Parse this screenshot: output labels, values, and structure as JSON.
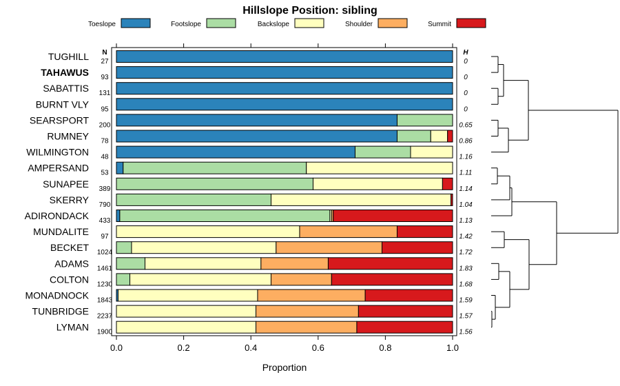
{
  "chart_data": {
    "type": "bar",
    "orientation": "horizontal",
    "stacked": true,
    "title": "Hillslope Position: sibling",
    "xlabel": "Proportion",
    "xlim": [
      0,
      1
    ],
    "xticks": [
      "0.0",
      "0.2",
      "0.4",
      "0.6",
      "0.8",
      "1.0"
    ],
    "legend_position": "top",
    "n_header": "N",
    "h_header": "H",
    "series": [
      {
        "name": "Toeslope",
        "color": "#2b83ba"
      },
      {
        "name": "Footslope",
        "color": "#abdda4"
      },
      {
        "name": "Backslope",
        "color": "#ffffbf"
      },
      {
        "name": "Shoulder",
        "color": "#fdae61"
      },
      {
        "name": "Summit",
        "color": "#d7191c"
      }
    ],
    "rows": [
      {
        "label": "TUGHILL",
        "bold": false,
        "n": "27",
        "h": "0",
        "values": [
          1,
          0,
          0,
          0,
          0
        ]
      },
      {
        "label": "TAHAWUS",
        "bold": true,
        "n": "93",
        "h": "0",
        "values": [
          1,
          0,
          0,
          0,
          0
        ]
      },
      {
        "label": "SABATTIS",
        "bold": false,
        "n": "131",
        "h": "0",
        "values": [
          1,
          0,
          0,
          0,
          0
        ]
      },
      {
        "label": "BURNT VLY",
        "bold": false,
        "n": "95",
        "h": "0",
        "values": [
          1,
          0,
          0,
          0,
          0
        ]
      },
      {
        "label": "SEARSPORT",
        "bold": false,
        "n": "200",
        "h": "0.65",
        "values": [
          0.835,
          0.165,
          0,
          0,
          0
        ]
      },
      {
        "label": "RUMNEY",
        "bold": false,
        "n": "78",
        "h": "0.86",
        "values": [
          0.835,
          0.1,
          0.05,
          0,
          0.015
        ]
      },
      {
        "label": "WILMINGTON",
        "bold": false,
        "n": "48",
        "h": "1.16",
        "values": [
          0.71,
          0.165,
          0.125,
          0,
          0
        ]
      },
      {
        "label": "AMPERSAND",
        "bold": false,
        "n": "53",
        "h": "1.11",
        "values": [
          0.02,
          0.545,
          0.435,
          0,
          0
        ]
      },
      {
        "label": "SUNAPEE",
        "bold": false,
        "n": "389",
        "h": "1.14",
        "values": [
          0,
          0.585,
          0.385,
          0,
          0.03
        ]
      },
      {
        "label": "SKERRY",
        "bold": false,
        "n": "790",
        "h": "1.04",
        "values": [
          0,
          0.46,
          0.535,
          0,
          0.005
        ]
      },
      {
        "label": "ADIRONDACK",
        "bold": false,
        "n": "433",
        "h": "1.13",
        "values": [
          0.01,
          0.625,
          0.005,
          0.005,
          0.355
        ]
      },
      {
        "label": "MUNDALITE",
        "bold": false,
        "n": "97",
        "h": "1.42",
        "values": [
          0,
          0,
          0.545,
          0.29,
          0.165
        ]
      },
      {
        "label": "BECKET",
        "bold": false,
        "n": "1024",
        "h": "1.72",
        "values": [
          0,
          0.045,
          0.43,
          0.315,
          0.21
        ]
      },
      {
        "label": "ADAMS",
        "bold": false,
        "n": "1461",
        "h": "1.83",
        "values": [
          0,
          0.085,
          0.345,
          0.2,
          0.37
        ]
      },
      {
        "label": "COLTON",
        "bold": false,
        "n": "1230",
        "h": "1.68",
        "values": [
          0,
          0.04,
          0.42,
          0.18,
          0.36
        ]
      },
      {
        "label": "MONADNOCK",
        "bold": false,
        "n": "1843",
        "h": "1.59",
        "values": [
          0.005,
          0,
          0.415,
          0.32,
          0.26
        ]
      },
      {
        "label": "TUNBRIDGE",
        "bold": false,
        "n": "2237",
        "h": "1.57",
        "values": [
          0,
          0,
          0.415,
          0.305,
          0.28
        ]
      },
      {
        "label": "LYMAN",
        "bold": false,
        "n": "1900",
        "h": "1.56",
        "values": [
          0,
          0,
          0.415,
          0.3,
          0.285
        ]
      }
    ]
  }
}
